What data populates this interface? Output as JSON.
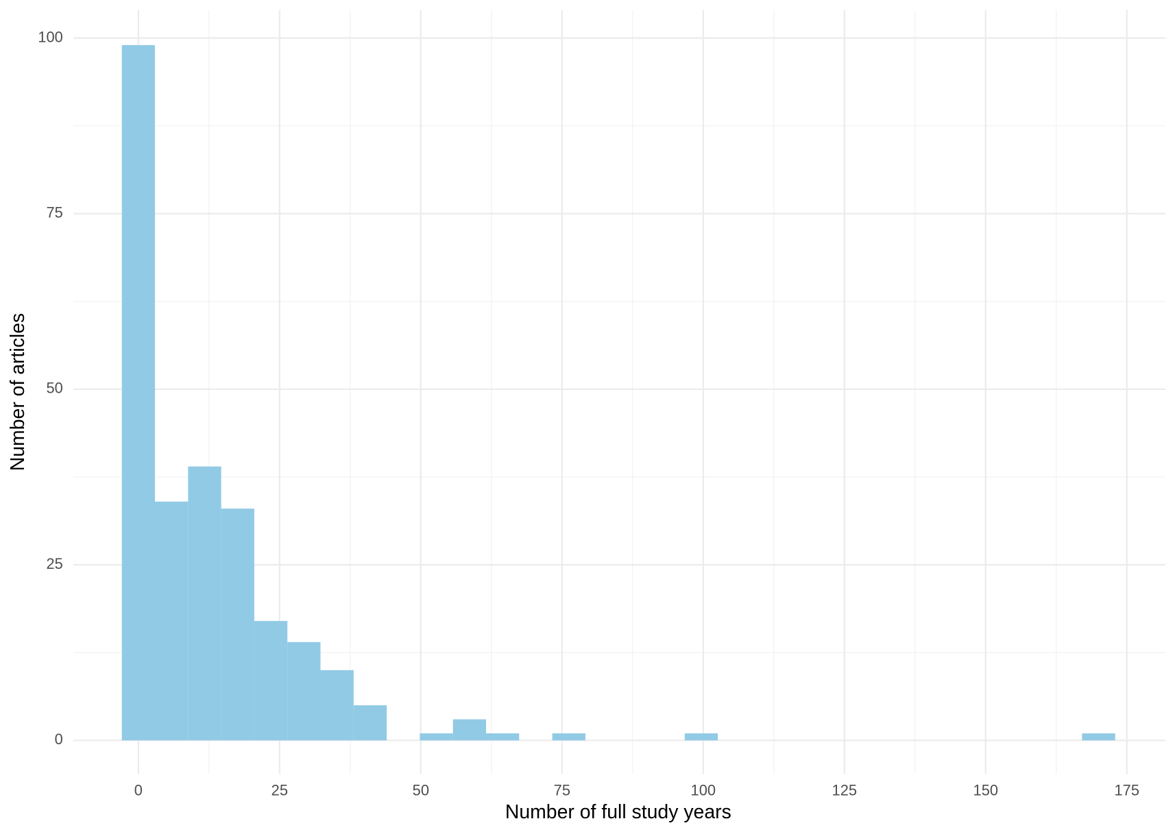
{
  "chart_data": {
    "type": "histogram",
    "x_label": "Number of full study years",
    "y_label": "Number of articles",
    "bins": [
      -2.931,
      2.931,
      8.793,
      14.655,
      20.517,
      26.379,
      32.241,
      38.103,
      43.966,
      49.828,
      55.69,
      61.552,
      67.414,
      73.276,
      79.138,
      85.0,
      90.862,
      96.724,
      102.586,
      108.448,
      114.31,
      120.172,
      126.034,
      131.897,
      137.759,
      143.621,
      149.483,
      155.345,
      161.207,
      167.069,
      172.931
    ],
    "values": [
      99,
      34,
      39,
      33,
      17,
      14,
      10,
      5,
      0,
      1,
      3,
      1,
      0,
      1,
      0,
      0,
      0,
      1,
      0,
      0,
      0,
      0,
      0,
      0,
      0,
      0,
      0,
      0,
      0,
      1
    ],
    "color": "#8fc9e4",
    "xlim": [
      -11.5,
      181.8
    ],
    "ylim": [
      -4.8,
      104
    ],
    "xticks": [
      0,
      25,
      50,
      75,
      100,
      125,
      150,
      175
    ],
    "yticks": [
      0,
      25,
      50,
      75,
      100
    ],
    "x_minor_grid": [
      12.5,
      37.5,
      62.5,
      87.5,
      112.5,
      137.5,
      162.5
    ],
    "y_minor_grid": [
      12.5,
      37.5,
      62.5,
      87.5
    ],
    "grid": true
  }
}
